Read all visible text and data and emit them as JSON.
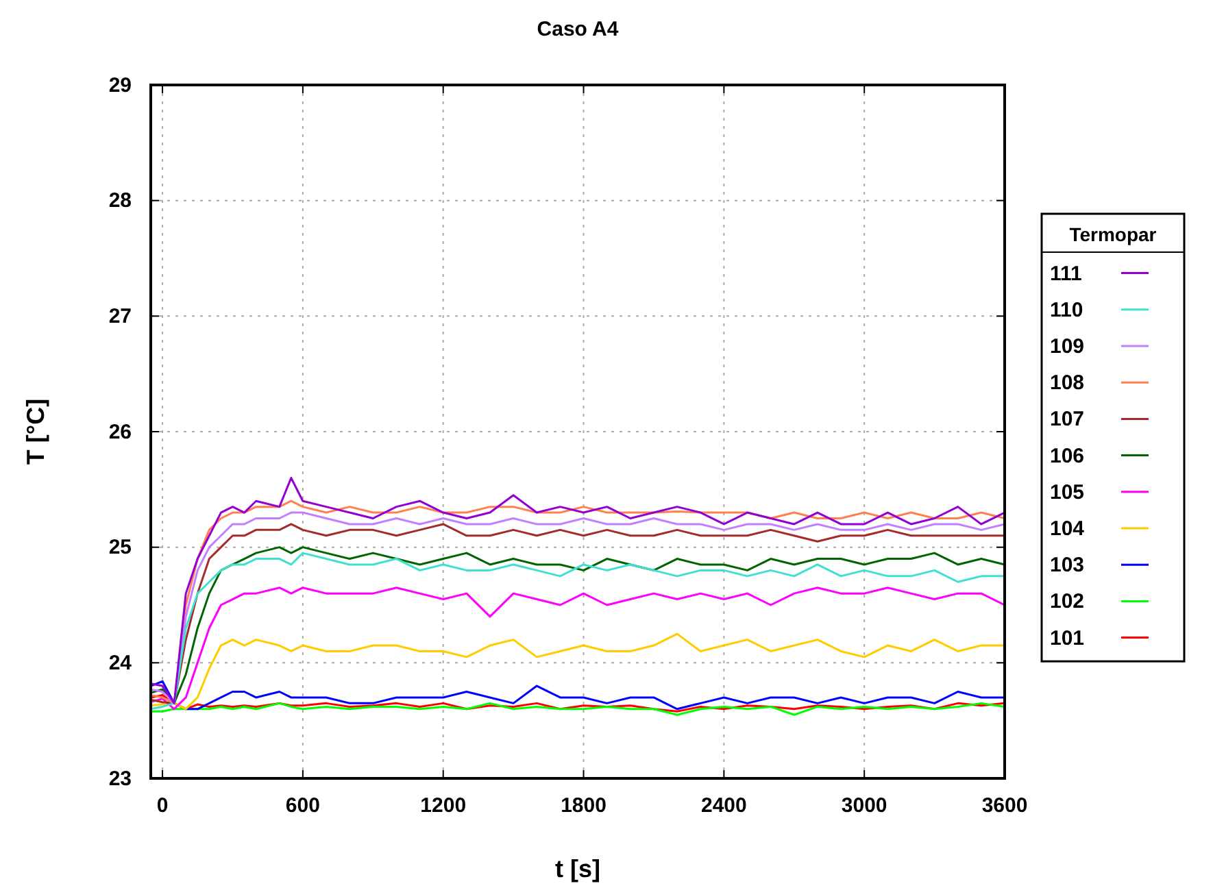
{
  "chart_data": {
    "type": "line",
    "title": "Caso A4",
    "xlabel": "t [s]",
    "ylabel": "T [°C]",
    "legend_title": "Termopar",
    "legend": "right",
    "grid": true,
    "line_style": "solid",
    "xlim": [
      -50,
      3600
    ],
    "ylim": [
      23,
      29
    ],
    "xticks": [
      0,
      600,
      1200,
      1800,
      2400,
      3000,
      3600
    ],
    "yticks": [
      23,
      24,
      25,
      26,
      27,
      28,
      29
    ],
    "x": [
      -50,
      0,
      50,
      100,
      150,
      200,
      250,
      300,
      350,
      400,
      500,
      550,
      600,
      700,
      800,
      900,
      1000,
      1100,
      1200,
      1300,
      1400,
      1500,
      1600,
      1700,
      1800,
      1900,
      2000,
      2100,
      2200,
      2300,
      2400,
      2500,
      2600,
      2700,
      2800,
      2900,
      3000,
      3100,
      3200,
      3300,
      3400,
      3500,
      3600
    ],
    "series": [
      {
        "name": "111",
        "color": "#9400d3",
        "values": [
          23.82,
          23.8,
          23.65,
          24.6,
          24.9,
          25.1,
          25.3,
          25.35,
          25.3,
          25.4,
          25.35,
          25.6,
          25.4,
          25.35,
          25.3,
          25.25,
          25.35,
          25.4,
          25.3,
          25.25,
          25.3,
          25.45,
          25.3,
          25.35,
          25.3,
          25.35,
          25.25,
          25.3,
          25.35,
          25.3,
          25.2,
          25.3,
          25.25,
          25.2,
          25.3,
          25.2,
          25.2,
          25.3,
          25.2,
          25.25,
          25.35,
          25.2,
          25.3
        ]
      },
      {
        "name": "110",
        "color": "#40e0d0",
        "values": [
          23.6,
          23.62,
          23.65,
          24.3,
          24.6,
          24.7,
          24.8,
          24.85,
          24.85,
          24.9,
          24.9,
          24.85,
          24.95,
          24.9,
          24.85,
          24.85,
          24.9,
          24.8,
          24.85,
          24.8,
          24.8,
          24.85,
          24.8,
          24.75,
          24.85,
          24.8,
          24.85,
          24.8,
          24.75,
          24.8,
          24.8,
          24.75,
          24.8,
          24.75,
          24.85,
          24.75,
          24.8,
          24.75,
          24.75,
          24.8,
          24.7,
          24.75,
          24.75
        ]
      },
      {
        "name": "109",
        "color": "#c080ff",
        "values": [
          23.77,
          23.75,
          23.65,
          24.4,
          24.8,
          25.0,
          25.1,
          25.2,
          25.2,
          25.25,
          25.25,
          25.3,
          25.3,
          25.25,
          25.2,
          25.2,
          25.25,
          25.2,
          25.25,
          25.2,
          25.2,
          25.25,
          25.2,
          25.2,
          25.25,
          25.2,
          25.2,
          25.25,
          25.2,
          25.2,
          25.15,
          25.2,
          25.2,
          25.15,
          25.2,
          25.15,
          25.15,
          25.2,
          25.15,
          25.2,
          25.2,
          25.15,
          25.2
        ]
      },
      {
        "name": "108",
        "color": "#ff8050",
        "values": [
          23.72,
          23.7,
          23.65,
          24.5,
          24.9,
          25.15,
          25.25,
          25.3,
          25.3,
          25.35,
          25.35,
          25.4,
          25.35,
          25.3,
          25.35,
          25.3,
          25.3,
          25.35,
          25.3,
          25.3,
          25.35,
          25.35,
          25.3,
          25.3,
          25.35,
          25.3,
          25.3,
          25.3,
          25.31,
          25.3,
          25.3,
          25.3,
          25.25,
          25.3,
          25.25,
          25.25,
          25.3,
          25.25,
          25.3,
          25.25,
          25.25,
          25.3,
          25.25
        ]
      },
      {
        "name": "107",
        "color": "#a52a2a",
        "values": [
          23.68,
          23.66,
          23.65,
          24.2,
          24.6,
          24.9,
          25.0,
          25.1,
          25.1,
          25.15,
          25.15,
          25.2,
          25.15,
          25.1,
          25.15,
          25.15,
          25.1,
          25.15,
          25.2,
          25.1,
          25.1,
          25.15,
          25.1,
          25.15,
          25.1,
          25.15,
          25.1,
          25.1,
          25.15,
          25.1,
          25.1,
          25.1,
          25.15,
          25.1,
          25.05,
          25.1,
          25.1,
          25.15,
          25.1,
          25.1,
          25.1,
          25.1,
          25.1
        ]
      },
      {
        "name": "106",
        "color": "#006400",
        "values": [
          23.74,
          23.77,
          23.65,
          23.9,
          24.3,
          24.6,
          24.8,
          24.85,
          24.9,
          24.95,
          25.0,
          24.95,
          25.0,
          24.95,
          24.9,
          24.95,
          24.9,
          24.85,
          24.9,
          24.95,
          24.85,
          24.9,
          24.85,
          24.85,
          24.8,
          24.9,
          24.85,
          24.8,
          24.9,
          24.85,
          24.85,
          24.8,
          24.9,
          24.85,
          24.9,
          24.9,
          24.85,
          24.9,
          24.9,
          24.95,
          24.85,
          24.9,
          24.85
        ]
      },
      {
        "name": "105",
        "color": "#ff00ff",
        "values": [
          23.66,
          23.69,
          23.6,
          23.7,
          24.0,
          24.3,
          24.5,
          24.55,
          24.6,
          24.6,
          24.65,
          24.6,
          24.65,
          24.6,
          24.6,
          24.6,
          24.65,
          24.6,
          24.55,
          24.6,
          24.4,
          24.6,
          24.55,
          24.5,
          24.6,
          24.5,
          24.55,
          24.6,
          24.55,
          24.6,
          24.55,
          24.6,
          24.5,
          24.6,
          24.65,
          24.6,
          24.6,
          24.65,
          24.6,
          24.55,
          24.6,
          24.6,
          24.5
        ]
      },
      {
        "name": "104",
        "color": "#ffcc00",
        "values": [
          23.63,
          23.64,
          23.65,
          23.6,
          23.7,
          23.95,
          24.15,
          24.2,
          24.15,
          24.2,
          24.15,
          24.1,
          24.15,
          24.1,
          24.1,
          24.15,
          24.15,
          24.1,
          24.1,
          24.05,
          24.15,
          24.2,
          24.05,
          24.1,
          24.15,
          24.1,
          24.1,
          24.15,
          24.25,
          24.1,
          24.15,
          24.2,
          24.1,
          24.15,
          24.2,
          24.1,
          24.05,
          24.15,
          24.1,
          24.2,
          24.1,
          24.15,
          24.15
        ]
      },
      {
        "name": "103",
        "color": "#0000ff",
        "values": [
          23.8,
          23.84,
          23.65,
          23.6,
          23.6,
          23.65,
          23.7,
          23.75,
          23.75,
          23.7,
          23.75,
          23.7,
          23.7,
          23.7,
          23.65,
          23.65,
          23.7,
          23.7,
          23.7,
          23.75,
          23.7,
          23.65,
          23.8,
          23.7,
          23.7,
          23.65,
          23.7,
          23.7,
          23.6,
          23.65,
          23.7,
          23.65,
          23.7,
          23.7,
          23.65,
          23.7,
          23.65,
          23.7,
          23.7,
          23.65,
          23.75,
          23.7,
          23.7
        ]
      },
      {
        "name": "102",
        "color": "#00ff00",
        "values": [
          23.58,
          23.58,
          23.6,
          23.6,
          23.6,
          23.6,
          23.62,
          23.6,
          23.62,
          23.6,
          23.65,
          23.62,
          23.6,
          23.62,
          23.6,
          23.62,
          23.62,
          23.6,
          23.62,
          23.6,
          23.65,
          23.6,
          23.62,
          23.6,
          23.6,
          23.62,
          23.6,
          23.6,
          23.55,
          23.6,
          23.62,
          23.6,
          23.62,
          23.55,
          23.62,
          23.6,
          23.62,
          23.6,
          23.62,
          23.6,
          23.62,
          23.65,
          23.62
        ]
      },
      {
        "name": "101",
        "color": "#ff0000",
        "values": [
          23.7,
          23.72,
          23.65,
          23.6,
          23.64,
          23.62,
          23.63,
          23.62,
          23.63,
          23.62,
          23.65,
          23.63,
          23.63,
          23.65,
          23.62,
          23.63,
          23.65,
          23.62,
          23.65,
          23.6,
          23.63,
          23.62,
          23.65,
          23.6,
          23.63,
          23.62,
          23.63,
          23.6,
          23.58,
          23.62,
          23.6,
          23.63,
          23.62,
          23.6,
          23.63,
          23.62,
          23.6,
          23.62,
          23.63,
          23.6,
          23.65,
          23.63,
          23.65
        ]
      }
    ]
  }
}
